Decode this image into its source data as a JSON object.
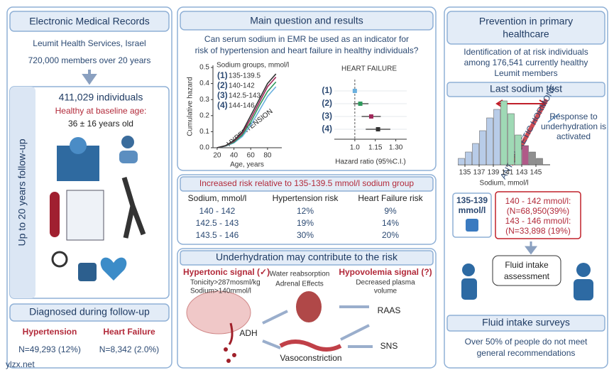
{
  "left": {
    "title": "Electronic Medical Records",
    "source": "Leumit Health Services, Israel",
    "members": "720,000 members over  20 years",
    "follow_up": "Up to 20 years follow-up",
    "individuals": "411,029 individuals",
    "healthy": "Healthy at baseline age:",
    "age": "36 ± 16 years old",
    "diagnosed": "Diagnosed during follow-up",
    "outcomes": [
      {
        "name": "Hypertension",
        "n": "N=49,293 (12%)"
      },
      {
        "name": "Heart Failure",
        "n": "N=8,342 (2.0%)"
      }
    ]
  },
  "middle": {
    "title": "Main question and results",
    "question": [
      "Can serum sodium in EMR be used as an indicator for",
      "risk of hypertension and heart failure in healthy individuals?"
    ],
    "hazard_chart": {
      "type": "line",
      "y_label": "Cumulative hazard",
      "x_label": "Age, years",
      "legend_title": "Sodium groups, mmol/l",
      "annotation": "HYPERTENSION",
      "x": [
        20,
        30,
        40,
        50,
        60,
        70,
        80,
        90
      ],
      "series": [
        {
          "marker": "(1)",
          "name": "135-139.5",
          "color": "#6ab0de",
          "values": [
            0,
            0.01,
            0.03,
            0.07,
            0.14,
            0.23,
            0.32,
            0.38
          ]
        },
        {
          "marker": "(2)",
          "name": "140-142",
          "color": "#2e9a5c",
          "values": [
            0,
            0.011,
            0.034,
            0.08,
            0.16,
            0.26,
            0.35,
            0.41
          ]
        },
        {
          "marker": "(3)",
          "name": "142.5-143",
          "color": "#a0285a",
          "values": [
            0,
            0.012,
            0.04,
            0.09,
            0.18,
            0.28,
            0.38,
            0.44
          ]
        },
        {
          "marker": "(4)",
          "name": "144-146",
          "color": "#333333",
          "values": [
            0,
            0.013,
            0.045,
            0.1,
            0.2,
            0.3,
            0.4,
            0.46
          ]
        }
      ],
      "xlim": [
        15,
        97
      ],
      "ylim": [
        0,
        0.5
      ],
      "xticks": [
        20,
        40,
        60,
        80
      ],
      "yticks": [
        {
          "value": 0,
          "label": "0.0"
        },
        0.1,
        0.2,
        0.3,
        0.4,
        0.5
      ]
    },
    "forest_chart": {
      "type": "forest",
      "title": "HEART FAILURE",
      "x_label": "Hazard ratio (95%C.I.)",
      "categories": [
        "(1)",
        "(2)",
        "(3)",
        "(4)"
      ],
      "colors": [
        "#6ab0de",
        "#2e9a5c",
        "#a0285a",
        "#333333"
      ],
      "values": [
        1,
        1.04,
        1.12,
        1.17
      ],
      "ci_low": [
        null,
        0.99,
        1.05,
        1.08
      ],
      "ci_high": [
        null,
        1.1,
        1.19,
        1.26
      ],
      "xlim": [
        0.85,
        1.38
      ],
      "xticks": [
        {
          "value": 1,
          "label": "1.0"
        },
        1.15,
        {
          "value": 1.3,
          "label": "1.30"
        }
      ]
    },
    "table": {
      "title": "Increased risk relative to 135-139.5 mmol/l sodium group",
      "columns": [
        "Sodium, mmol/l",
        "Hypertension risk",
        "Heart Failure risk"
      ],
      "rows": [
        [
          "140 - 142",
          "12%",
          "9%"
        ],
        [
          "142.5 - 143",
          "19%",
          "14%"
        ],
        [
          "143.5 - 146",
          "30%",
          "20%"
        ]
      ],
      "row_colors": [
        "#3a9a3a",
        "#b0203a",
        "#444444"
      ]
    },
    "mechanism": {
      "title": "Underhydration may contribute to the  risk",
      "hypertonic": "Hypertonic signal (✓)",
      "tonicity": "Tonicity>287mosml/kg",
      "sodium": "Sodium>140mmol/l",
      "water": "Water reabsorption",
      "adrenal": "Adrenal Effects",
      "hypovolemia": "Hypovolemia signal (?)",
      "plasma": [
        "Decreased plasma",
        "volume"
      ],
      "raas": "RAAS",
      "adh": "ADH",
      "sns": "SNS",
      "vaso": "Vasoconstriction"
    }
  },
  "right": {
    "title": [
      "Prevention in primary",
      "healthcare"
    ],
    "identification": [
      "Identification of at risk individuals",
      "among 176,541 currently healthy",
      "Leumit members"
    ],
    "last_test": "Last sodium test",
    "histogram": {
      "type": "histogram",
      "bins": [
        134,
        135,
        136,
        137,
        138,
        139,
        140,
        141,
        142,
        143,
        144,
        145,
        146
      ],
      "values": [
        3,
        6,
        10,
        16,
        22,
        26,
        30,
        24,
        14,
        9,
        6,
        3
      ],
      "colors": [
        "#b8cce8",
        "#b8cce8",
        "#b8cce8",
        "#b8cce8",
        "#b8cce8",
        "#b8cce8",
        "#9fd9b5",
        "#9fd9b5",
        "#9fd9b5",
        "#b05a88",
        "#909090",
        "#909090"
      ],
      "x_label": "Sodium, mmol/l",
      "xlim": [
        134,
        147
      ],
      "xticks": [
        135,
        137,
        139,
        141,
        143,
        145
      ],
      "annotation": "ANTIDIURETIC HORMONE"
    },
    "response": [
      "Response to",
      "underhydration is",
      "activated"
    ],
    "normal": [
      "135-139",
      "mmol/l"
    ],
    "at_risk": [
      "140 - 142 mmol/l:",
      "(N=68,950(39%)",
      "143 - 146 mmol/l:",
      "(N=33,898 (19%)"
    ],
    "assessment": [
      "Fluid intake",
      "assessment"
    ],
    "surveys": "Fluid intake surveys",
    "surveys_text": [
      "Over 50% of people do not meet",
      "general recommendations"
    ]
  },
  "watermark": "ylzx.net"
}
